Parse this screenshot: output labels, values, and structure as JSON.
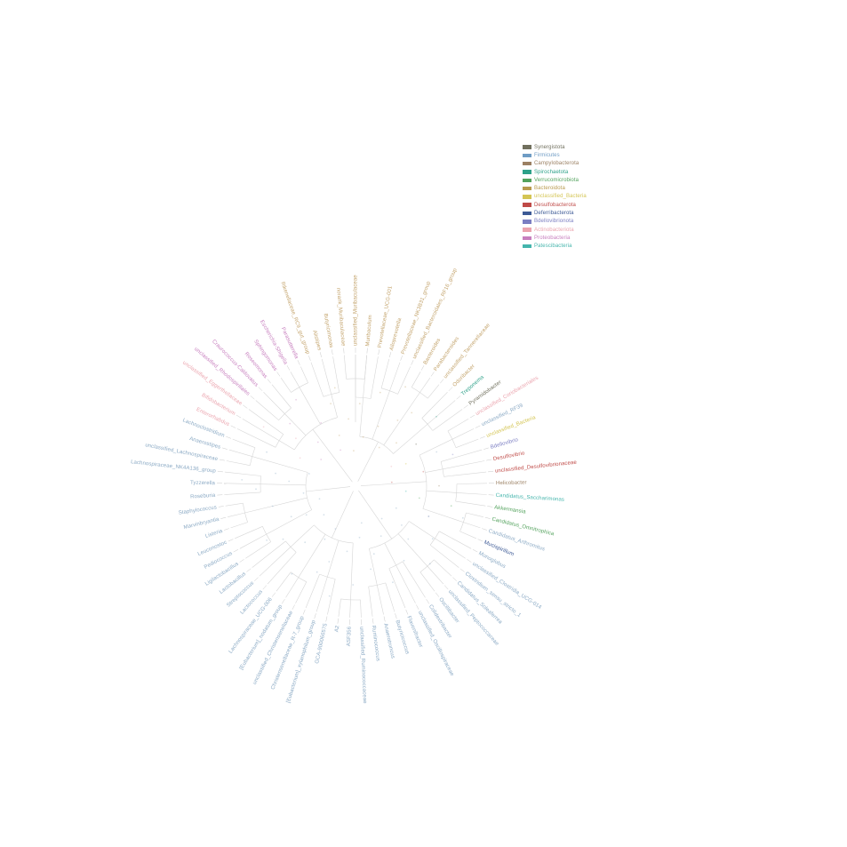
{
  "figure": {
    "description": "Circular phylogenetic tree of gut microbiota genera colored by phylum"
  },
  "legend": {
    "items": [
      {
        "label": "Synergistota",
        "color": "#71705e"
      },
      {
        "label": "Firmicutes",
        "color": "#6f9cc4"
      },
      {
        "label": "Campylobacterota",
        "color": "#9b8063"
      },
      {
        "label": "Spirochaetota",
        "color": "#2da189"
      },
      {
        "label": "Verrucomicrobiota",
        "color": "#53a25d"
      },
      {
        "label": "Bacteroidota",
        "color": "#b89a4e"
      },
      {
        "label": "unclassified_Bacteria",
        "color": "#d4c554"
      },
      {
        "label": "Desulfobacterota",
        "color": "#bf4a47"
      },
      {
        "label": "Deferribacterota",
        "color": "#3d5a96"
      },
      {
        "label": "Bdellovibrionota",
        "color": "#7b7ec2"
      },
      {
        "label": "Actinobacteriota",
        "color": "#eba4ae"
      },
      {
        "label": "Proteobacteria",
        "color": "#c77fbe"
      },
      {
        "label": "Patescibacteria",
        "color": "#45b5ac"
      }
    ]
  },
  "tree": {
    "label_colors_note": "leaf label color follows its phylum legend color; Bacteroidota leaf labels render tan",
    "bacteroidota_label_color": "#c3a36b",
    "firmicutes_label_color": "#8aa9c4",
    "leaves": [
      {
        "label": "unclassified_Muribaculaceae",
        "phylum": "Bacteroidota"
      },
      {
        "label": "Muribaculum",
        "phylum": "Bacteroidota"
      },
      {
        "label": "Prevotellaceae_UCG-001",
        "phylum": "Bacteroidota"
      },
      {
        "label": "Alloprevotella",
        "phylum": "Bacteroidota"
      },
      {
        "label": "Prevotellaceae_NK3B31_group",
        "phylum": "Bacteroidota"
      },
      {
        "label": "unclassified_Bacteroidales_RF16_group",
        "phylum": "Bacteroidota"
      },
      {
        "label": "Bacteroides",
        "phylum": "Bacteroidota"
      },
      {
        "label": "Parabacteroides",
        "phylum": "Bacteroidota"
      },
      {
        "label": "unclassified_Tannerellaceae",
        "phylum": "Bacteroidota"
      },
      {
        "label": "Odoribacter",
        "phylum": "Bacteroidota"
      },
      {
        "label": "Treponema",
        "phylum": "Spirochaetota"
      },
      {
        "label": "Pyramidobacter",
        "phylum": "Synergistota"
      },
      {
        "label": "unclassified_Coriobacteriales",
        "phylum": "Actinobacteriota"
      },
      {
        "label": "unclassified_RF39",
        "phylum": "Firmicutes"
      },
      {
        "label": "unclassified_Bacteria",
        "phylum": "unclassified_Bacteria"
      },
      {
        "label": "Bdellovibrio",
        "phylum": "Bdellovibrionota"
      },
      {
        "label": "Desulfovibrio",
        "phylum": "Desulfobacterota"
      },
      {
        "label": "unclassified_Desulfovibrionaceae",
        "phylum": "Desulfobacterota"
      },
      {
        "label": "Helicobacter",
        "phylum": "Campylobacterota"
      },
      {
        "label": "Candidatus_Saccharimonas",
        "phylum": "Patescibacteria"
      },
      {
        "label": "Akkermansia",
        "phylum": "Verrucomicrobiota"
      },
      {
        "label": "Candidatus_Omnitrophica",
        "phylum": "Verrucomicrobiota"
      },
      {
        "label": "Candidatus_Arthromitus",
        "phylum": "Firmicutes"
      },
      {
        "label": "Mucispirillum",
        "phylum": "Deferribacterota"
      },
      {
        "label": "Monoglobus",
        "phylum": "Firmicutes"
      },
      {
        "label": "unclassified_Clostridia_UCG-014",
        "phylum": "Firmicutes"
      },
      {
        "label": "Clostridium_sensu_stricto_1",
        "phylum": "Firmicutes"
      },
      {
        "label": "Candidatus_Soleaferrea",
        "phylum": "Firmicutes"
      },
      {
        "label": "unclassified_Peptococcaceae",
        "phylum": "Firmicutes"
      },
      {
        "label": "Oscillibacter",
        "phylum": "Firmicutes"
      },
      {
        "label": "Colidextribacter",
        "phylum": "Firmicutes"
      },
      {
        "label": "unclassified_Oscillospiraceae",
        "phylum": "Firmicutes"
      },
      {
        "label": "Flavonifractor",
        "phylum": "Firmicutes"
      },
      {
        "label": "Butyricicoccus",
        "phylum": "Firmicutes"
      },
      {
        "label": "Anaerotruncus",
        "phylum": "Firmicutes"
      },
      {
        "label": "Ruminococcus",
        "phylum": "Firmicutes"
      },
      {
        "label": "unclassified_Ruminococcaceae",
        "phylum": "Firmicutes"
      },
      {
        "label": "ASF356",
        "phylum": "Firmicutes"
      },
      {
        "label": "A2",
        "phylum": "Firmicutes"
      },
      {
        "label": "GCA-900066575",
        "phylum": "Firmicutes"
      },
      {
        "label": "[Eubacterium]_xylanophilum_group",
        "phylum": "Firmicutes"
      },
      {
        "label": "Christensenellaceae_R-7_group",
        "phylum": "Firmicutes"
      },
      {
        "label": "unclassified_Christensenellaceae",
        "phylum": "Firmicutes"
      },
      {
        "label": "[Eubacterium]_nodatum_group",
        "phylum": "Firmicutes"
      },
      {
        "label": "Lachnospiraceae_UCG-006",
        "phylum": "Firmicutes"
      },
      {
        "label": "Lactococcus",
        "phylum": "Firmicutes"
      },
      {
        "label": "Streptococcus",
        "phylum": "Firmicutes"
      },
      {
        "label": "Lactobacillus",
        "phylum": "Firmicutes"
      },
      {
        "label": "Ligilactobacillus",
        "phylum": "Firmicutes"
      },
      {
        "label": "Pediococcus",
        "phylum": "Firmicutes"
      },
      {
        "label": "Leuconostoc",
        "phylum": "Firmicutes"
      },
      {
        "label": "Listeria",
        "phylum": "Firmicutes"
      },
      {
        "label": "Marvinbryantia",
        "phylum": "Firmicutes"
      },
      {
        "label": "Staphylococcus",
        "phylum": "Firmicutes"
      },
      {
        "label": "Roseburia",
        "phylum": "Firmicutes"
      },
      {
        "label": "Tyzzerella",
        "phylum": "Firmicutes"
      },
      {
        "label": "Lachnospiraceae_NK4A136_group",
        "phylum": "Firmicutes"
      },
      {
        "label": "unclassified_Lachnospiraceae",
        "phylum": "Firmicutes"
      },
      {
        "label": "Anaerostipes",
        "phylum": "Firmicutes"
      },
      {
        "label": "Lachnoclostridium",
        "phylum": "Firmicutes"
      },
      {
        "label": "Enterorhabdus",
        "phylum": "Actinobacteriota"
      },
      {
        "label": "Bifidobacterium",
        "phylum": "Actinobacteriota"
      },
      {
        "label": "unclassified_Eggerthellaceae",
        "phylum": "Actinobacteriota"
      },
      {
        "label": "unclassified_Rhodospirillales",
        "phylum": "Proteobacteria"
      },
      {
        "label": "Craurococcus-Caldovatus",
        "phylum": "Proteobacteria"
      },
      {
        "label": "Roseomonas",
        "phylum": "Proteobacteria"
      },
      {
        "label": "Sphingomonas",
        "phylum": "Proteobacteria"
      },
      {
        "label": "Escherichia-Shigella",
        "phylum": "Proteobacteria"
      },
      {
        "label": "Parasutterella",
        "phylum": "Proteobacteria"
      },
      {
        "label": "Rikenellaceae_RC9_gut_group",
        "phylum": "Bacteroidota"
      },
      {
        "label": "Alistipes",
        "phylum": "Bacteroidota"
      },
      {
        "label": "Butyricimonas",
        "phylum": "Bacteroidota"
      },
      {
        "label": "norank_Muribaculaceae",
        "phylum": "Bacteroidota"
      }
    ]
  }
}
